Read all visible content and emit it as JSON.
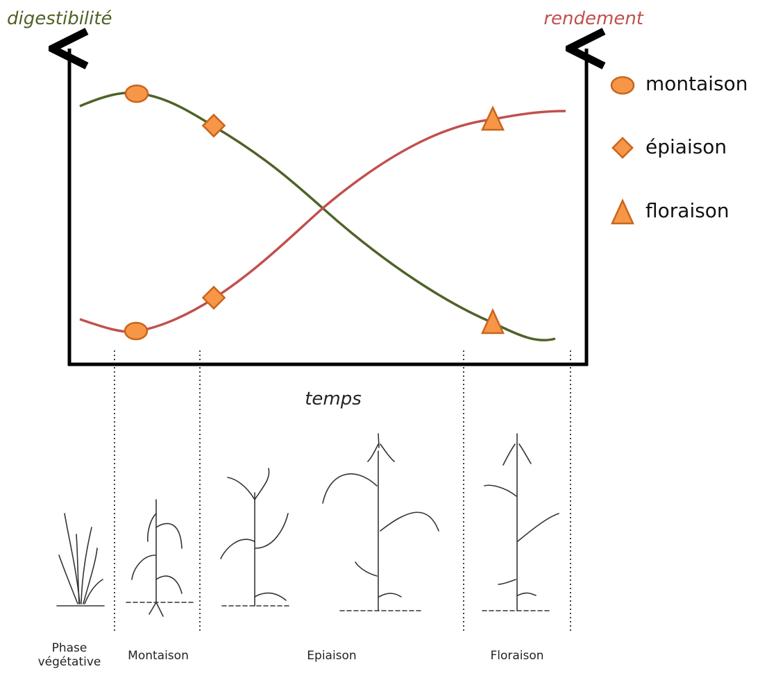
{
  "axes": {
    "y_left": "digestibilité",
    "y_right": "rendement",
    "x": "temps"
  },
  "legend": [
    {
      "label": "montaison"
    },
    {
      "label": "épiaison"
    },
    {
      "label": "floraison"
    }
  ],
  "stages": [
    "Phase végétative",
    "Montaison",
    "Epiaison",
    "Floraison"
  ]
}
